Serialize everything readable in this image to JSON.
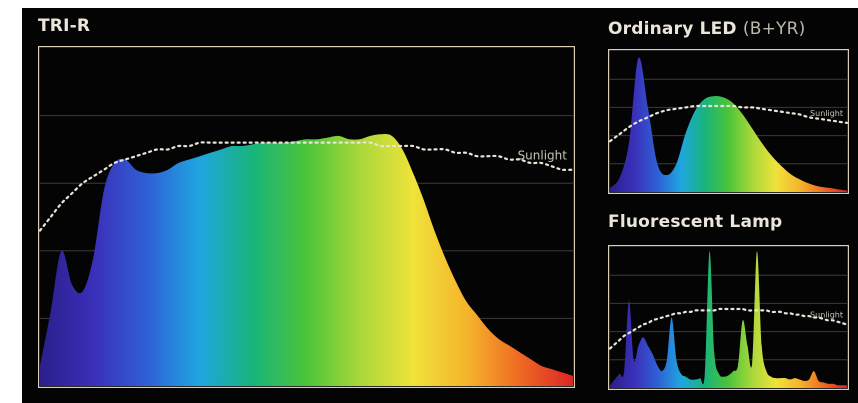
{
  "colors": {
    "background": "#040404",
    "frame": "#d8cfb6",
    "title": "#ece6da",
    "sunlight_curve": "#e8e4d8"
  },
  "chart_data": [
    {
      "type": "area",
      "title": "TRI-R",
      "xlabel": "",
      "ylabel": "",
      "grid": true,
      "x": [
        0,
        0.02,
        0.04,
        0.06,
        0.08,
        0.1,
        0.12,
        0.14,
        0.16,
        0.18,
        0.2,
        0.22,
        0.24,
        0.26,
        0.28,
        0.3,
        0.32,
        0.34,
        0.36,
        0.38,
        0.4,
        0.42,
        0.44,
        0.46,
        0.48,
        0.5,
        0.52,
        0.54,
        0.56,
        0.58,
        0.6,
        0.62,
        0.64,
        0.66,
        0.68,
        0.7,
        0.72,
        0.74,
        0.76,
        0.78,
        0.8,
        0.82,
        0.84,
        0.86,
        0.88,
        0.9,
        0.92,
        0.94,
        0.96,
        0.98,
        1.0
      ],
      "series": [
        {
          "values": [
            0.06,
            0.22,
            0.4,
            0.3,
            0.28,
            0.38,
            0.58,
            0.66,
            0.67,
            0.64,
            0.63,
            0.63,
            0.64,
            0.66,
            0.67,
            0.68,
            0.69,
            0.7,
            0.71,
            0.71,
            0.715,
            0.72,
            0.72,
            0.72,
            0.725,
            0.73,
            0.73,
            0.735,
            0.74,
            0.73,
            0.73,
            0.74,
            0.745,
            0.74,
            0.7,
            0.63,
            0.55,
            0.46,
            0.38,
            0.31,
            0.25,
            0.21,
            0.17,
            0.14,
            0.12,
            0.1,
            0.08,
            0.06,
            0.05,
            0.04,
            0.03
          ]
        },
        {
          "name": "Sunlight",
          "values": [
            0.46,
            0.5,
            0.54,
            0.57,
            0.6,
            0.62,
            0.64,
            0.66,
            0.67,
            0.68,
            0.69,
            0.7,
            0.7,
            0.71,
            0.71,
            0.72,
            0.72,
            0.72,
            0.72,
            0.72,
            0.72,
            0.72,
            0.72,
            0.72,
            0.72,
            0.72,
            0.72,
            0.72,
            0.72,
            0.72,
            0.72,
            0.72,
            0.71,
            0.71,
            0.71,
            0.71,
            0.7,
            0.7,
            0.7,
            0.69,
            0.69,
            0.68,
            0.68,
            0.68,
            0.67,
            0.67,
            0.66,
            0.66,
            0.65,
            0.64,
            0.64
          ]
        }
      ]
    },
    {
      "type": "area",
      "title": "Ordinary LED",
      "subtitle": "(B+YR)",
      "xlabel": "",
      "ylabel": "",
      "grid": true,
      "x": [
        0,
        0.04,
        0.08,
        0.12,
        0.16,
        0.2,
        0.24,
        0.28,
        0.32,
        0.36,
        0.4,
        0.44,
        0.48,
        0.52,
        0.56,
        0.6,
        0.64,
        0.68,
        0.72,
        0.76,
        0.8,
        0.84,
        0.88,
        0.92,
        0.96,
        1.0
      ],
      "series": [
        {
          "values": [
            0.03,
            0.1,
            0.35,
            0.95,
            0.6,
            0.2,
            0.12,
            0.2,
            0.42,
            0.58,
            0.66,
            0.68,
            0.67,
            0.63,
            0.55,
            0.45,
            0.35,
            0.26,
            0.19,
            0.13,
            0.09,
            0.06,
            0.04,
            0.03,
            0.02,
            0.01
          ]
        },
        {
          "name": "Sunlight",
          "values": [
            0.36,
            0.41,
            0.46,
            0.5,
            0.53,
            0.56,
            0.58,
            0.59,
            0.6,
            0.61,
            0.61,
            0.61,
            0.61,
            0.61,
            0.6,
            0.6,
            0.59,
            0.58,
            0.57,
            0.56,
            0.55,
            0.53,
            0.52,
            0.51,
            0.5,
            0.49
          ]
        }
      ]
    },
    {
      "type": "area",
      "title": "Fluorescent Lamp",
      "xlabel": "",
      "ylabel": "",
      "grid": true,
      "x": [
        0,
        0.02,
        0.04,
        0.06,
        0.08,
        0.1,
        0.12,
        0.14,
        0.16,
        0.18,
        0.2,
        0.22,
        0.24,
        0.26,
        0.28,
        0.3,
        0.32,
        0.34,
        0.36,
        0.38,
        0.4,
        0.42,
        0.44,
        0.46,
        0.48,
        0.5,
        0.52,
        0.54,
        0.56,
        0.58,
        0.6,
        0.62,
        0.64,
        0.66,
        0.68,
        0.7,
        0.72,
        0.74,
        0.76,
        0.78,
        0.8,
        0.82,
        0.84,
        0.86,
        0.88,
        0.9,
        0.92,
        0.94,
        0.96,
        0.98,
        1.0
      ],
      "series": [
        {
          "values": [
            0.02,
            0.06,
            0.1,
            0.12,
            0.62,
            0.2,
            0.3,
            0.36,
            0.3,
            0.24,
            0.16,
            0.12,
            0.2,
            0.5,
            0.2,
            0.1,
            0.08,
            0.06,
            0.06,
            0.07,
            0.1,
            0.97,
            0.25,
            0.1,
            0.08,
            0.09,
            0.12,
            0.16,
            0.48,
            0.3,
            0.18,
            0.97,
            0.3,
            0.12,
            0.08,
            0.07,
            0.07,
            0.07,
            0.06,
            0.07,
            0.06,
            0.05,
            0.06,
            0.12,
            0.05,
            0.04,
            0.03,
            0.03,
            0.02,
            0.02,
            0.02
          ]
        },
        {
          "name": "Sunlight",
          "values": [
            0.28,
            0.31,
            0.34,
            0.37,
            0.39,
            0.41,
            0.43,
            0.45,
            0.46,
            0.48,
            0.49,
            0.5,
            0.51,
            0.52,
            0.53,
            0.53,
            0.54,
            0.54,
            0.55,
            0.55,
            0.55,
            0.55,
            0.55,
            0.56,
            0.56,
            0.56,
            0.56,
            0.56,
            0.56,
            0.55,
            0.55,
            0.55,
            0.55,
            0.55,
            0.54,
            0.54,
            0.54,
            0.53,
            0.53,
            0.52,
            0.52,
            0.51,
            0.51,
            0.5,
            0.5,
            0.49,
            0.48,
            0.48,
            0.47,
            0.46,
            0.45
          ]
        }
      ]
    }
  ]
}
